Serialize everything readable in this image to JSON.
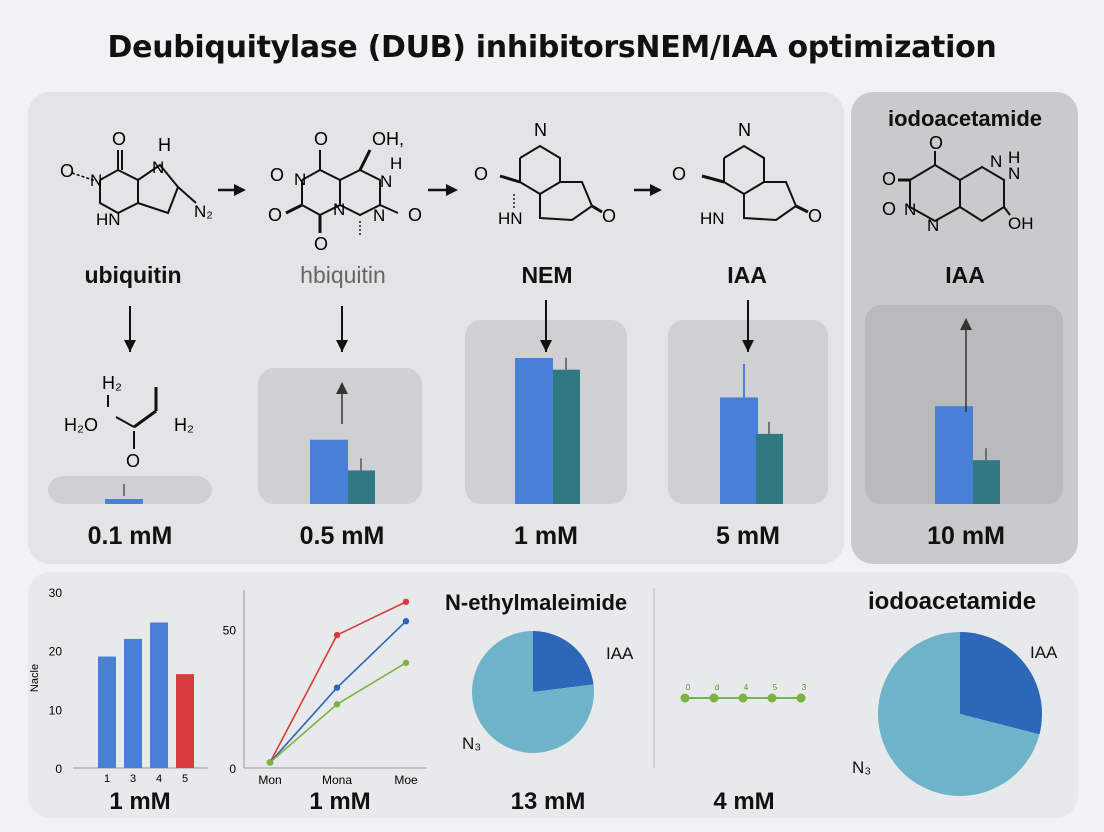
{
  "title": "Deubiquitylase (DUB) inhibitorsNEM/IAA optimization",
  "steps": [
    {
      "label": "ubiquitin",
      "conc": "0.1 mM",
      "structure_text": [
        "O",
        "H",
        "O",
        "N",
        "N",
        "N₂",
        "HN"
      ]
    },
    {
      "label": "hbiquitin",
      "conc": "0.5 mM",
      "structure_text": [
        "O",
        "OH,",
        "O",
        "N",
        "H",
        "N",
        "N",
        "N",
        "O",
        "O",
        "O"
      ]
    },
    {
      "label": "NEM",
      "conc": "1 mM",
      "structure_text": [
        "N",
        "O",
        "HN",
        "O"
      ]
    },
    {
      "label": "IAA",
      "conc": "5 mM",
      "structure_text": [
        "N",
        "O",
        "HN",
        "O"
      ]
    },
    {
      "label": "IAA",
      "conc": "10 mM",
      "structure_text": [
        "O",
        "N",
        "N",
        "H",
        "O",
        "O",
        "N",
        "N",
        "OH"
      ]
    }
  ],
  "iodo_heading": "iodoacetamide",
  "sub_structure_text": [
    "H₂",
    "H₂O",
    "H₂",
    "O"
  ],
  "colors": {
    "blue": "#4a7fd6",
    "teal": "#2f7a82",
    "red": "#d83b3b",
    "green": "#7bb342",
    "pie_light": "#6fb3c9",
    "pie_dark": "#2c67b8"
  },
  "chart_data": [
    {
      "type": "bar",
      "panels": [
        "0.1 mM",
        "0.5 mM",
        "1 mM",
        "5 mM",
        "10 mM"
      ],
      "series": [
        {
          "values": [
            0.03,
            0.44,
            1.0,
            0.73,
            0.67
          ]
        },
        {
          "values": [
            0.0,
            0.23,
            0.92,
            0.48,
            0.3
          ]
        }
      ]
    },
    {
      "type": "bar",
      "categories": [
        "1",
        "3",
        "4",
        "5"
      ],
      "values": [
        19,
        22,
        24.8,
        16
      ],
      "colors": [
        "#4a7fd6",
        "#4a7fd6",
        "#4a7fd6",
        "#d83b3b"
      ],
      "ylabel": "Nacle",
      "yticks": [
        "0",
        "10",
        "20",
        "30"
      ],
      "ylim": [
        0,
        30
      ],
      "caption": "1 mM"
    },
    {
      "type": "line",
      "x_labels": [
        "Mon",
        "Mona",
        "Moe"
      ],
      "yticks": [
        "0",
        "50"
      ],
      "ylim": [
        0,
        65
      ],
      "series": [
        {
          "color": "#d83b3b",
          "values": [
            2,
            48,
            60
          ]
        },
        {
          "color": "#2c67b8",
          "values": [
            2,
            29,
            53
          ]
        },
        {
          "color": "#7bb342",
          "values": [
            2,
            23,
            38
          ]
        }
      ],
      "caption": "1 mM"
    },
    {
      "type": "pie",
      "title": "N-ethylmaleimide",
      "slices": [
        {
          "label": "IAA",
          "value": 23
        },
        {
          "label": "N₃",
          "value": 77
        }
      ],
      "caption": "13 mM"
    },
    {
      "type": "line",
      "point_labels": [
        "0",
        "d",
        "4",
        "5",
        "3"
      ],
      "values": [
        0,
        0,
        0,
        0,
        0
      ],
      "caption": "4 mM"
    },
    {
      "type": "pie",
      "title": "iodoacetamide",
      "slices": [
        {
          "label": "IAA",
          "value": 29
        },
        {
          "label": "N₃",
          "value": 71
        }
      ]
    }
  ]
}
